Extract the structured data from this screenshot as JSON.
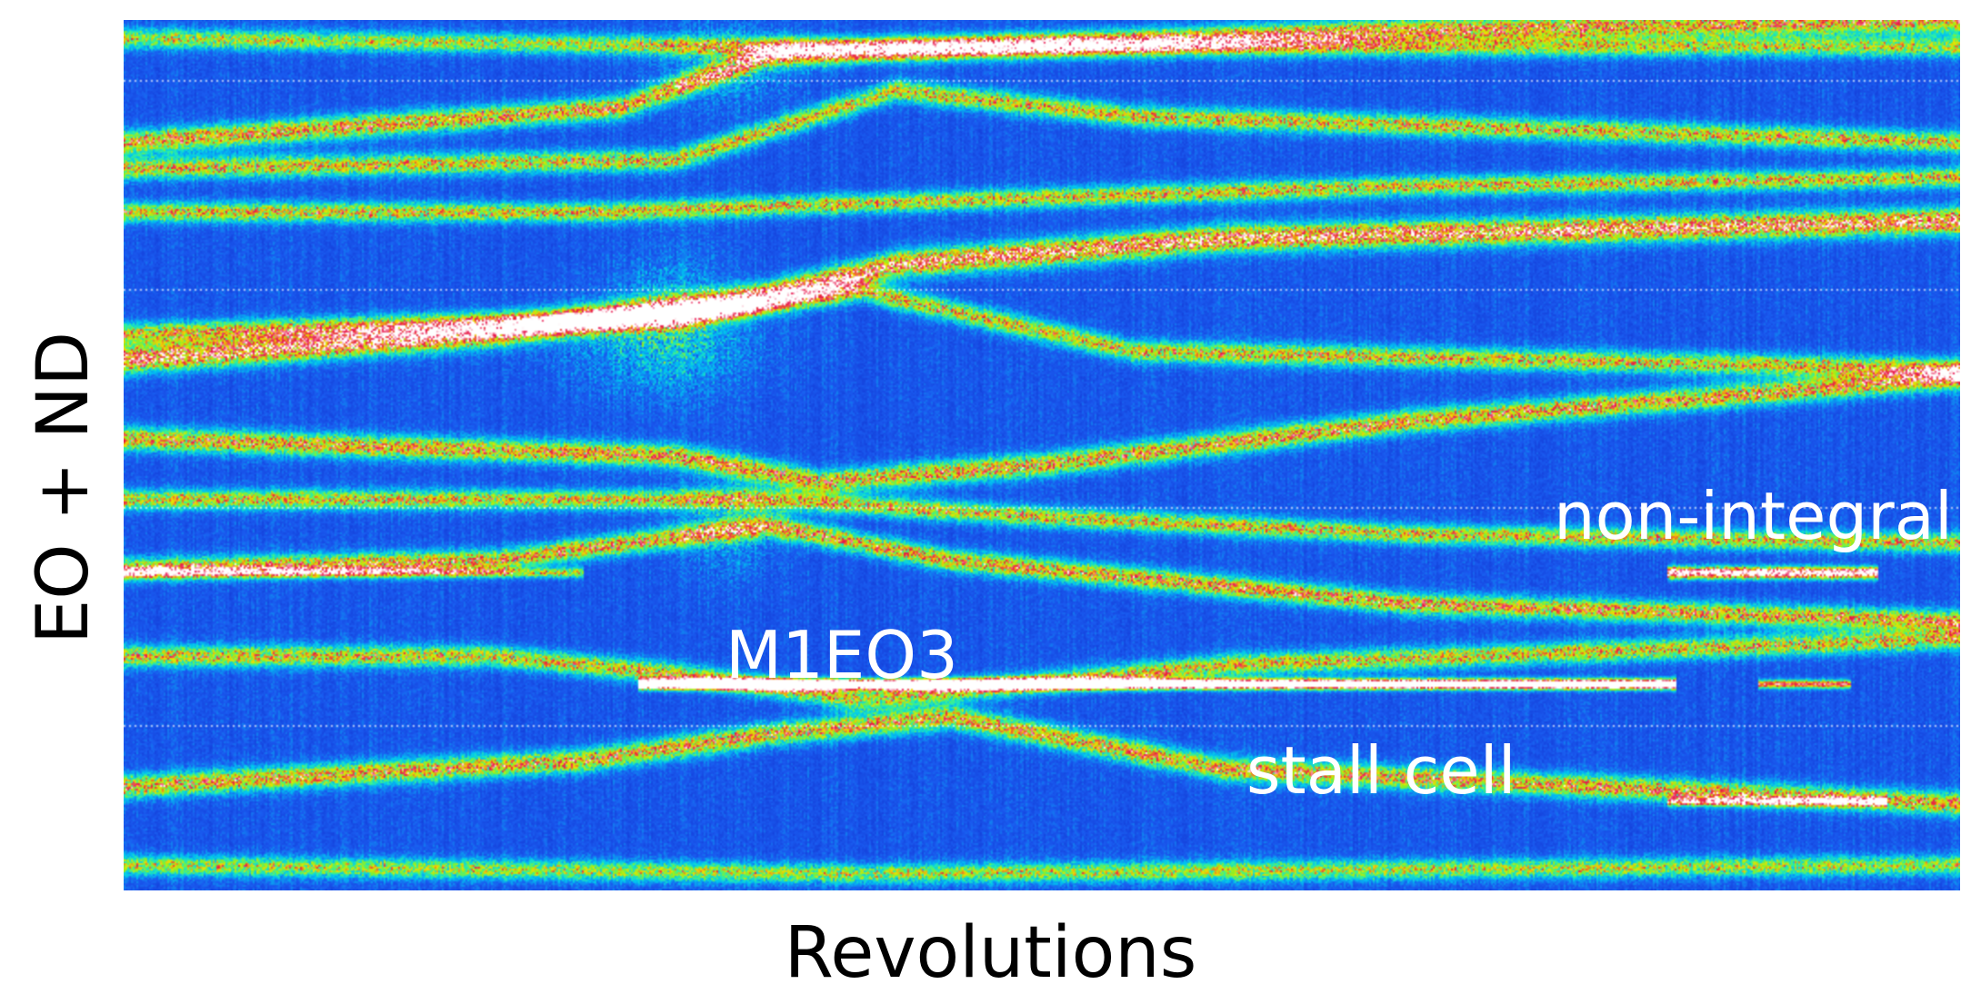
{
  "chart_data": {
    "type": "heatmap",
    "title": "",
    "xlabel": "Revolutions",
    "ylabel": "EO + ND",
    "x_ticks": [],
    "y_ticks": [],
    "grid": "dotted horizontal",
    "colormap": [
      "#1030d0",
      "#1a5cf0",
      "#00c8f0",
      "#30f0a0",
      "#90f020",
      "#f0e000",
      "#e8104a",
      "#ffffff"
    ],
    "annotations": [
      {
        "id": "nonintegral",
        "text": "non-integral"
      },
      {
        "id": "m1eo3",
        "text": "M1EO3"
      },
      {
        "id": "stallcell",
        "text": "stall cell"
      }
    ]
  }
}
